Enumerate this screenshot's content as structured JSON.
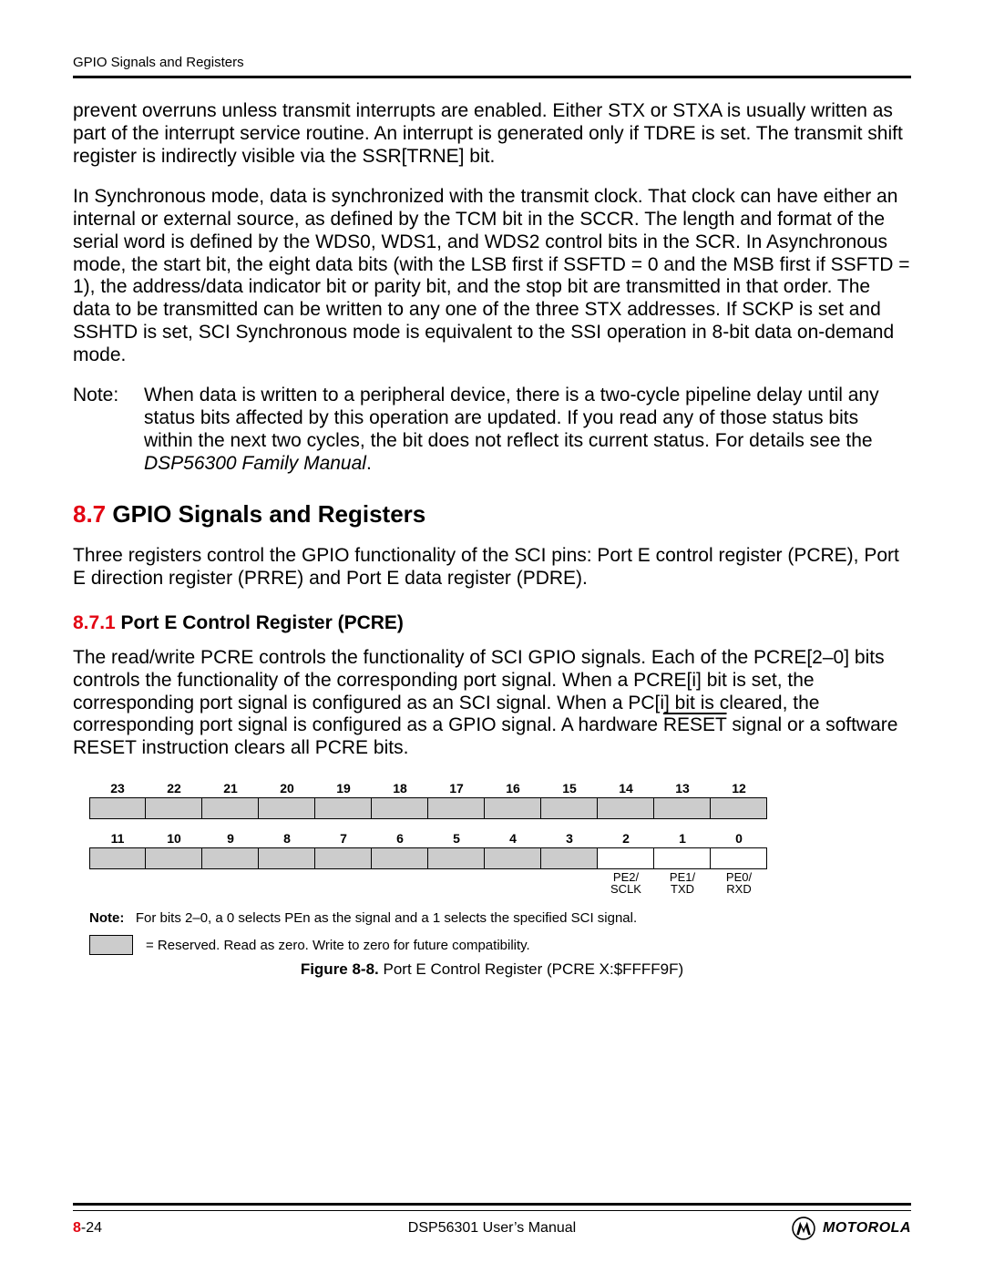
{
  "header": {
    "running_title": "GPIO Signals and Registers"
  },
  "paragraphs": {
    "p1": "prevent overruns unless transmit interrupts are enabled. Either STX or STXA is usually written as part of the interrupt service routine. An interrupt is generated only if TDRE is set. The transmit shift register is indirectly visible via the SSR[TRNE] bit.",
    "p2": "In Synchronous mode, data is synchronized with the transmit clock. That clock can have either an internal or external source, as defined by the TCM bit in the SCCR. The length and format of the serial word is defined by the WDS0, WDS1, and WDS2 control bits in the SCR. In Asynchronous mode, the start bit, the eight data bits (with the LSB first if SSFTD = 0 and the MSB first if SSFTD = 1), the address/data indicator bit or parity bit, and the stop bit are transmitted in that order. The data to be transmitted can be written to any one of the three STX addresses. If SCKP is set and SSHTD is set, SCI Synchronous mode is equivalent to the SSI operation in 8-bit data on-demand mode.",
    "note1": {
      "label": "Note:",
      "body_pre": "When data is written to a peripheral device, there is a two-cycle pipeline delay until any status bits affected by this operation are updated. If you read any of those status bits within the next two cycles, the bit does not reflect its current status. For details see the ",
      "body_ital": "DSP56300 Family Manual",
      "body_post": "."
    }
  },
  "h2": {
    "num": "8.7",
    "title": " GPIO Signals and Registers"
  },
  "p3": "Three registers control the GPIO functionality of the SCI pins: Port E control register (PCRE), Port E direction register (PRRE) and Port E data register (PDRE).",
  "h3": {
    "num": "8.7.1",
    "title": " Port E Control Register (PCRE)"
  },
  "p4_pre": "The read/write PCRE controls the functionality of SCI GPIO signals. Each of the PCRE[2–0] bits controls the functionality of the corresponding port signal. When a PCRE[i] bit is set, the corresponding port signal is configured as an SCI signal. When a PC[i] bit is cleared, the corresponding port signal is configured as a GPIO signal. A hardware ",
  "p4_reset": "RESET",
  "p4_post": " signal or a software RESET instruction clears all PCRE bits.",
  "register": {
    "bits_high": [
      "23",
      "22",
      "21",
      "20",
      "19",
      "18",
      "17",
      "16",
      "15",
      "14",
      "13",
      "12"
    ],
    "bits_low": [
      "11",
      "10",
      "9",
      "8",
      "7",
      "6",
      "5",
      "4",
      "3",
      "2",
      "1",
      "0"
    ],
    "low_labels": [
      "",
      "",
      "",
      "",
      "",
      "",
      "",
      "",
      "",
      "PE2/\nSCLK",
      "PE1/\nTXD",
      "PE0/\nRXD"
    ],
    "clear_low_indices": [
      9,
      10,
      11
    ],
    "reserved_color": "#cccccc",
    "border_color": "#000000",
    "note_label": "Note:",
    "note_text": "For bits 2–0, a 0 selects PEn as the signal and a 1 selects the specified SCI signal.",
    "legend_text": "= Reserved. Read as zero. Write to zero for future compatibility.",
    "caption_strong": "Figure 8-8.",
    "caption_rest": " Port E Control Register (PCRE X:$FFFF9F)"
  },
  "footer": {
    "page_red": "8",
    "page_rest": "-24",
    "manual": "DSP56301 User’s Manual",
    "brand": "MOTOROLA",
    "logo_colors": {
      "ring": "#000000",
      "m": "#000000",
      "bg": "#ffffff"
    }
  }
}
